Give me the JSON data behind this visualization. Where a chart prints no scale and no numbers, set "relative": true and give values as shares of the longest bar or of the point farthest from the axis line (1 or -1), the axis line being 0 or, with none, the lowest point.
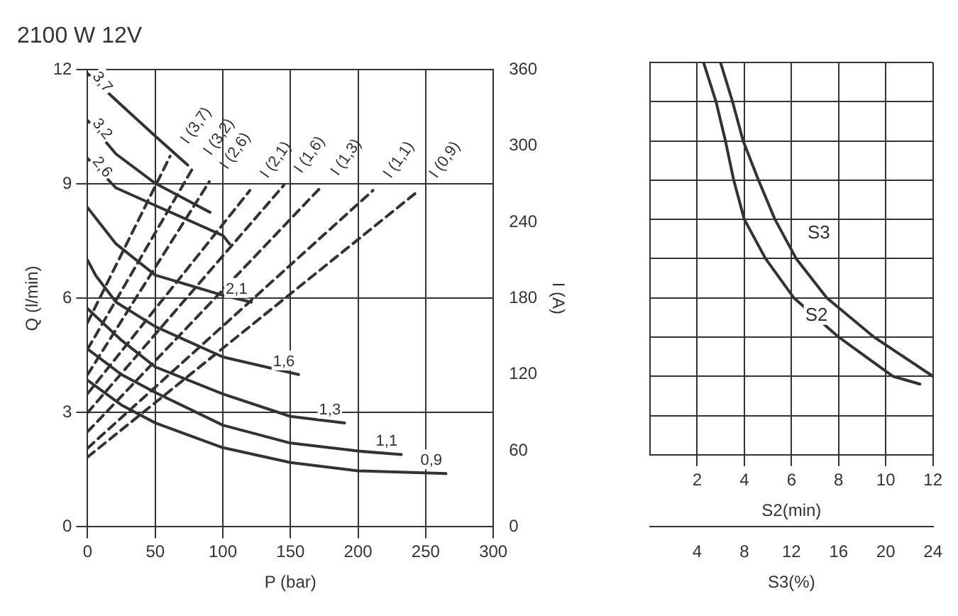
{
  "chart_data": [
    {
      "type": "line",
      "title": "2100 W 12V",
      "xlabel": "P (bar)",
      "ylabel": "Q (l/min)",
      "y2label": "I (A)",
      "xlim": [
        0,
        300
      ],
      "xticks": [
        0,
        50,
        100,
        150,
        200,
        250,
        300
      ],
      "ylim": [
        0,
        12
      ],
      "yticks": [
        0,
        3,
        6,
        9,
        12
      ],
      "y2lim": [
        0,
        360
      ],
      "y2ticks": [
        0,
        60,
        120,
        180,
        240,
        300,
        360
      ],
      "grid": true,
      "series": [
        {
          "name": "3,7",
          "color": "#333333",
          "x": [
            0,
            21,
            50,
            74
          ],
          "values": [
            11.9,
            11.2,
            10.26,
            9.5
          ]
        },
        {
          "name": "3,2",
          "color": "#333333",
          "x": [
            0,
            21,
            50,
            90.5
          ],
          "values": [
            10.67,
            9.79,
            9.02,
            8.26
          ]
        },
        {
          "name": "2,6",
          "color": "#333333",
          "x": [
            0,
            21,
            50,
            100,
            105
          ],
          "values": [
            9.67,
            8.9,
            8.44,
            7.65,
            7.43
          ]
        },
        {
          "name": "2,1",
          "color": "#333333",
          "x": [
            0,
            21,
            50,
            100,
            121
          ],
          "values": [
            8.38,
            7.43,
            6.61,
            6.08,
            5.9
          ]
        },
        {
          "name": "1,6",
          "color": "#333333",
          "x": [
            0,
            6,
            21,
            50,
            100,
            156
          ],
          "values": [
            7.0,
            6.6,
            5.9,
            5.26,
            4.46,
            4.0
          ]
        },
        {
          "name": "1,3",
          "color": "#333333",
          "x": [
            0,
            25,
            50,
            100,
            150,
            190
          ],
          "values": [
            5.73,
            4.9,
            4.2,
            3.49,
            2.9,
            2.73
          ]
        },
        {
          "name": "1,1",
          "color": "#333333",
          "x": [
            0,
            25,
            50,
            100,
            150,
            200,
            232
          ],
          "values": [
            4.67,
            4.0,
            3.53,
            2.67,
            2.2,
            1.99,
            1.9
          ]
        },
        {
          "name": "0,9",
          "color": "#333333",
          "x": [
            0,
            25,
            50,
            100,
            150,
            200,
            265
          ],
          "values": [
            3.85,
            3.2,
            2.73,
            2.08,
            1.69,
            1.47,
            1.4
          ]
        },
        {
          "name": "I (3,7)",
          "color": "#333333",
          "axis": "y2",
          "line_style": "dashed",
          "x": [
            0,
            61
          ],
          "values": [
            161,
            292
          ]
        },
        {
          "name": "I (3,2)",
          "color": "#333333",
          "axis": "y2",
          "line_style": "dashed",
          "x": [
            0,
            78
          ],
          "values": [
            140,
            283
          ]
        },
        {
          "name": "I (2,6)",
          "color": "#333333",
          "axis": "y2",
          "line_style": "dashed",
          "x": [
            0,
            90
          ],
          "values": [
            120,
            272
          ]
        },
        {
          "name": "I (2,1)",
          "color": "#333333",
          "axis": "y2",
          "line_style": "dashed",
          "x": [
            0,
            120
          ],
          "values": [
            105,
            265
          ]
        },
        {
          "name": "I (1,6)",
          "color": "#333333",
          "axis": "y2",
          "line_style": "dashed",
          "x": [
            0,
            145
          ],
          "values": [
            90,
            269
          ]
        },
        {
          "name": "I (1,3)",
          "color": "#333333",
          "axis": "y2",
          "line_style": "dashed",
          "x": [
            0,
            172
          ],
          "values": [
            75,
            267
          ]
        },
        {
          "name": "I (1,1)",
          "color": "#333333",
          "axis": "y2",
          "line_style": "dashed",
          "x": [
            0,
            211
          ],
          "values": [
            62,
            265
          ]
        },
        {
          "name": "I (0,9)",
          "color": "#333333",
          "axis": "y2",
          "line_style": "dashed",
          "x": [
            0,
            245
          ],
          "values": [
            55,
            265
          ]
        }
      ]
    },
    {
      "type": "line",
      "relative": true,
      "xlabel": "S2(min)",
      "x2label": "S3(%)",
      "xlim": [
        0,
        12
      ],
      "xticks": [
        2,
        4,
        6,
        8,
        10,
        12
      ],
      "x2lim": [
        0,
        24
      ],
      "x2ticks": [
        4,
        8,
        12,
        16,
        20,
        24
      ],
      "grid": true,
      "series": [
        {
          "name": "S2",
          "color": "#333333",
          "x": [
            2.27,
            2.8,
            3.2,
            3.55,
            4.0,
            4.9,
            6.1,
            8.0,
            10.3,
            11.45
          ],
          "values": [
            1,
            0.9,
            0.8,
            0.7,
            0.6,
            0.5,
            0.4,
            0.3,
            0.2,
            0.18
          ]
        },
        {
          "name": "S3",
          "color": "#333333",
          "x": [
            2.99,
            3.5,
            3.95,
            4.6,
            5.3,
            6.2,
            7.5,
            9.5,
            12
          ],
          "values": [
            1,
            0.9,
            0.8,
            0.7,
            0.6,
            0.5,
            0.4,
            0.3,
            0.2
          ]
        }
      ]
    }
  ]
}
